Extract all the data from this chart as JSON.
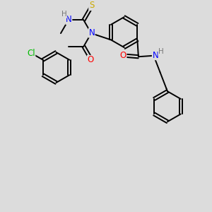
{
  "bg_color": "#dcdcdc",
  "bond_color": "#000000",
  "bond_width": 1.4,
  "atom_colors": {
    "C": "#000000",
    "N": "#0000ff",
    "O": "#ff0000",
    "S": "#ccaa00",
    "Cl": "#00bb00",
    "H": "#777777"
  },
  "font_size": 8.5,
  "fig_size": [
    3.0,
    3.0
  ],
  "dpi": 100
}
